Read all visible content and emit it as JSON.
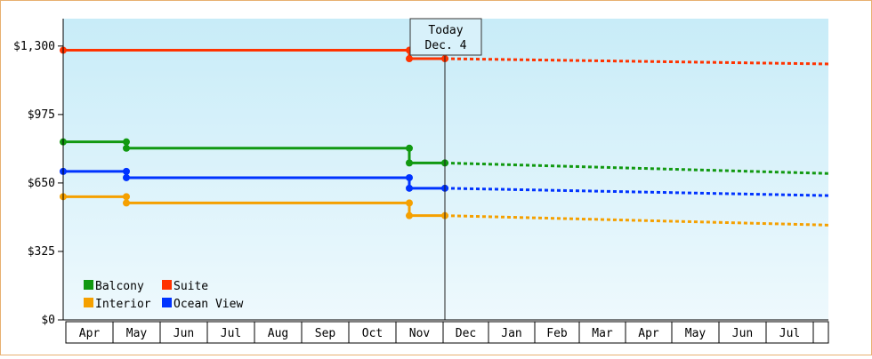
{
  "chart_data": {
    "type": "line",
    "title": "",
    "xlabel": "",
    "ylabel": "",
    "ylim": [
      0,
      1430
    ],
    "y_ticks": [
      0,
      325,
      650,
      975,
      1300
    ],
    "y_tick_labels": [
      "$0",
      "$325",
      "$650",
      "$975",
      "$1,300"
    ],
    "x_tick_labels": [
      "Apr",
      "May",
      "Jun",
      "Jul",
      "Aug",
      "Sep",
      "Oct",
      "Nov",
      "Dec",
      "Jan",
      "Feb",
      "Mar",
      "Apr",
      "May",
      "Jun",
      "Jul"
    ],
    "today_label": [
      "Today",
      "Dec. 4"
    ],
    "grid": false,
    "legend_position": "bottom-left",
    "colors": {
      "background_top": "#c8ecf8",
      "background_bottom": "#eef9fd",
      "frame_border": "#e8b070"
    },
    "series": [
      {
        "name": "Balcony",
        "color": "#119911",
        "actual": [
          [
            "Apr",
            845
          ],
          [
            "May",
            845
          ],
          [
            "May",
            815
          ],
          [
            "Nov",
            815
          ],
          [
            "Nov",
            745
          ],
          [
            "Dec 4",
            745
          ]
        ],
        "forecast": [
          [
            "Dec 4",
            745
          ],
          [
            "Aug",
            695
          ]
        ]
      },
      {
        "name": "Suite",
        "color": "#ff3300",
        "actual": [
          [
            "Apr",
            1280
          ],
          [
            "Nov",
            1280
          ],
          [
            "Nov",
            1240
          ],
          [
            "Dec 4",
            1240
          ]
        ],
        "forecast": [
          [
            "Dec 4",
            1240
          ],
          [
            "Aug",
            1215
          ]
        ]
      },
      {
        "name": "Interior",
        "color": "#f5a000",
        "actual": [
          [
            "Apr",
            585
          ],
          [
            "May",
            585
          ],
          [
            "May",
            555
          ],
          [
            "Nov",
            555
          ],
          [
            "Nov",
            495
          ],
          [
            "Dec 4",
            495
          ]
        ],
        "forecast": [
          [
            "Dec 4",
            495
          ],
          [
            "Aug",
            450
          ]
        ]
      },
      {
        "name": "Ocean View",
        "color": "#0033ff",
        "actual": [
          [
            "Apr",
            705
          ],
          [
            "May",
            705
          ],
          [
            "May",
            675
          ],
          [
            "Nov",
            675
          ],
          [
            "Nov",
            625
          ],
          [
            "Dec 4",
            625
          ]
        ],
        "forecast": [
          [
            "Dec 4",
            625
          ],
          [
            "Aug",
            590
          ]
        ]
      }
    ]
  }
}
